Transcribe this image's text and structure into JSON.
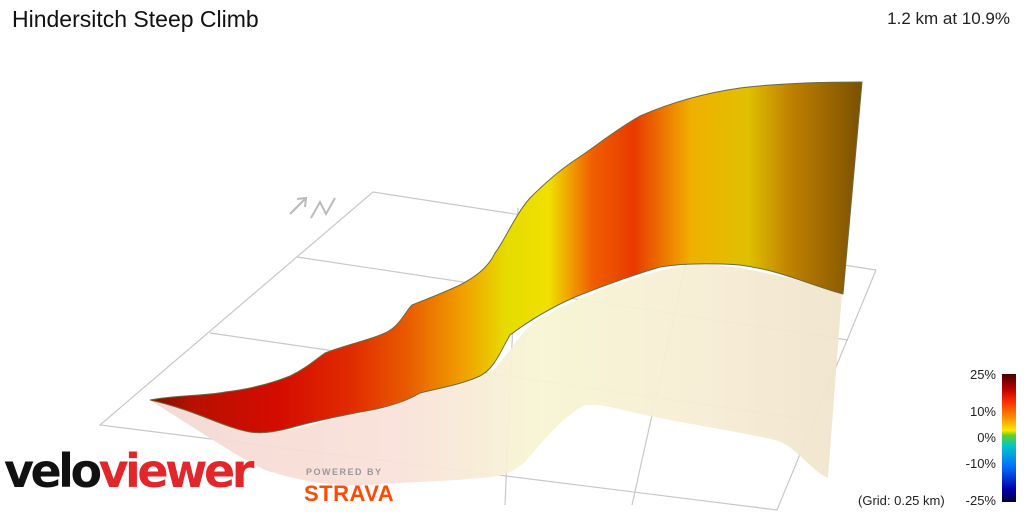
{
  "segment": {
    "title": "Hindersitch Steep Climb",
    "summary": "1.2 km at 10.9%"
  },
  "compass": {
    "label": "N",
    "icon": "north-arrow-icon"
  },
  "legend": {
    "labels": [
      "25%",
      "10%",
      "0%",
      "-10%",
      "-25%"
    ],
    "grid_note": "(Grid: 0.25 km)"
  },
  "branding": {
    "logo_part1": "velo",
    "logo_part2": "viewer",
    "powered_by": "POWERED BY",
    "strava": "STRAVA"
  },
  "colors": {
    "logo_red": "#e3262a",
    "strava_orange": "#fc4c02",
    "grid_line": "#c8c8c8"
  }
}
